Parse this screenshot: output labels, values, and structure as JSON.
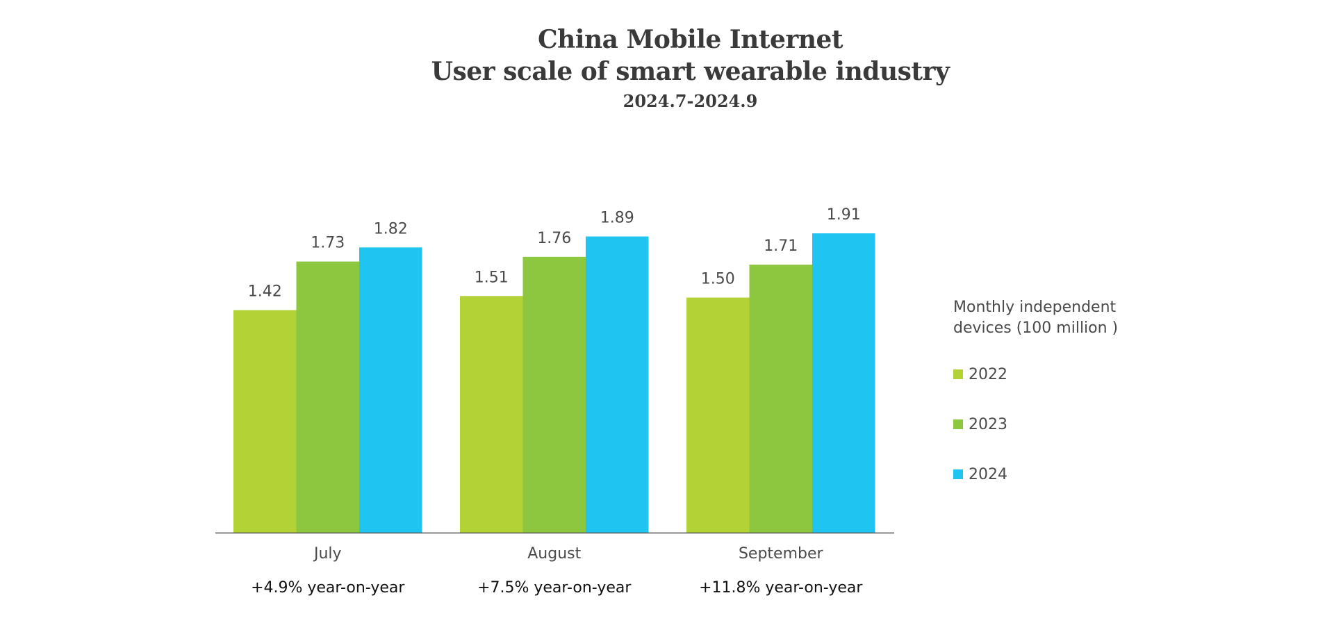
{
  "header": {
    "title_line1": "China Mobile Internet",
    "title_line2": "User scale of smart wearable industry",
    "subtitle": "2024.7-2024.9"
  },
  "legend": {
    "title": "Monthly independent devices (100 million )",
    "items": [
      {
        "label": "2022",
        "color": "#b2d235"
      },
      {
        "label": "2023",
        "color": "#8dc63f"
      },
      {
        "label": "2024",
        "color": "#1fc5f0"
      }
    ]
  },
  "chart_data": {
    "type": "bar",
    "title": "China Mobile Internet User scale of smart wearable industry",
    "subtitle": "2024.7-2024.9",
    "categories": [
      "July",
      "August",
      "September"
    ],
    "category_notes": [
      "+4.9% year-on-year",
      "+7.5% year-on-year",
      "+11.8% year-on-year"
    ],
    "series": [
      {
        "name": "2022",
        "color": "#b2d235",
        "values": [
          1.42,
          1.51,
          1.5
        ],
        "labels": [
          "1.42",
          "1.51",
          "1.50"
        ]
      },
      {
        "name": "2023",
        "color": "#8dc63f",
        "values": [
          1.73,
          1.76,
          1.71
        ],
        "labels": [
          "1.73",
          "1.76",
          "1.71"
        ]
      },
      {
        "name": "2024",
        "color": "#1fc5f0",
        "values": [
          1.82,
          1.89,
          1.91
        ],
        "labels": [
          "1.82",
          "1.89",
          "1.91"
        ]
      }
    ],
    "ylabel": "Monthly independent devices (100 million )",
    "ylim": [
      0,
      1.91
    ],
    "grid": false,
    "legend_position": "right"
  }
}
